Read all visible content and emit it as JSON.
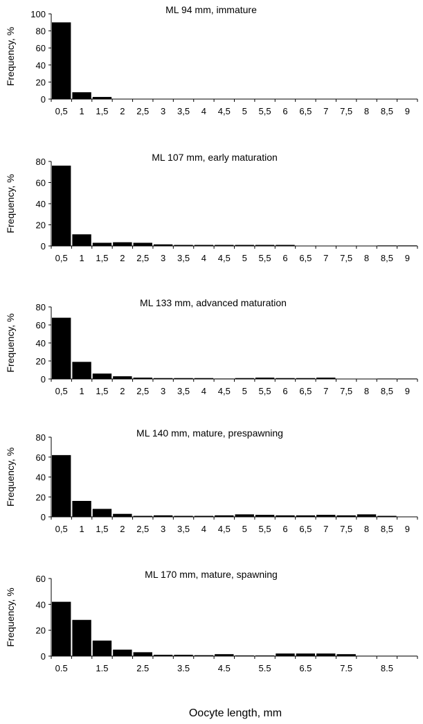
{
  "figure": {
    "xlabel": "Oocyte length, mm"
  },
  "chart_data": [
    {
      "type": "bar",
      "title": "ML 94 mm, immature",
      "ylabel": "Frequency, %",
      "ylim": [
        0,
        100
      ],
      "yticks": [
        "0",
        "20",
        "40",
        "60",
        "80",
        "100"
      ],
      "categories": [
        "0,5",
        "1",
        "1,5",
        "2",
        "2,5",
        "3",
        "3,5",
        "4",
        "4,5",
        "5",
        "5,5",
        "6",
        "6,5",
        "7",
        "7,5",
        "8",
        "8,5",
        "9"
      ],
      "values": [
        90,
        8,
        2.5,
        0.3,
        0,
        0,
        0,
        0,
        0.3,
        0,
        0,
        0,
        0.3,
        0,
        0,
        0,
        0,
        0
      ],
      "grid": false
    },
    {
      "type": "bar",
      "title": "ML 107 mm, early maturation",
      "ylabel": "Frequency, %",
      "ylim": [
        0,
        80
      ],
      "yticks": [
        "0",
        "20",
        "40",
        "60",
        "80"
      ],
      "categories": [
        "0,5",
        "1",
        "1,5",
        "2",
        "2,5",
        "3",
        "3,5",
        "4",
        "4,5",
        "5",
        "5,5",
        "6",
        "6,5",
        "7",
        "7,5",
        "8",
        "8,5",
        "9"
      ],
      "values": [
        76,
        11,
        3,
        3.5,
        3,
        1.5,
        1,
        1,
        1,
        1,
        1,
        1,
        0.3,
        0.3,
        0.3,
        0.3,
        0.5,
        0.5
      ],
      "grid": false
    },
    {
      "type": "bar",
      "title": "ML 133 mm, advanced maturation",
      "ylabel": "Frequency, %",
      "ylim": [
        0,
        80
      ],
      "yticks": [
        "0",
        "20",
        "40",
        "60",
        "80"
      ],
      "categories": [
        "0,5",
        "1",
        "1,5",
        "2",
        "2,5",
        "3",
        "3,5",
        "4",
        "4,5",
        "5",
        "5,5",
        "6",
        "6,5",
        "7",
        "7,5",
        "8",
        "8,5",
        "9"
      ],
      "values": [
        68,
        19,
        6,
        3,
        1.5,
        1,
        1,
        1,
        0.5,
        1,
        1.5,
        1,
        1,
        1.5,
        0.3,
        0.3,
        0.5,
        0.5
      ],
      "grid": false
    },
    {
      "type": "bar",
      "title": "ML 140 mm, mature, prespawning",
      "ylabel": "Frequency, %",
      "ylim": [
        0,
        80
      ],
      "yticks": [
        "0",
        "20",
        "40",
        "60",
        "80"
      ],
      "categories": [
        "0,5",
        "1",
        "1,5",
        "2",
        "2,5",
        "3",
        "3,5",
        "4",
        "4,5",
        "5",
        "5,5",
        "6",
        "6,5",
        "7",
        "7,5",
        "8",
        "8,5",
        "9"
      ],
      "values": [
        62,
        16,
        8,
        3,
        1,
        1.5,
        1,
        1,
        1.5,
        2.5,
        2,
        1.5,
        1.5,
        2,
        1.5,
        2.5,
        1,
        0.3
      ],
      "grid": false
    },
    {
      "type": "bar",
      "title": "ML 170 mm, mature, spawning",
      "ylabel": "Frequency, %",
      "ylim": [
        0,
        60
      ],
      "yticks": [
        "0",
        "20",
        "40",
        "60"
      ],
      "categories": [
        "0.5",
        "1",
        "1.5",
        "2",
        "2.5",
        "3",
        "3.5",
        "4",
        "4.5",
        "5",
        "5.5",
        "6",
        "6.5",
        "7",
        "7.5",
        "8",
        "8.5",
        "9"
      ],
      "xtick_labels": [
        "0.5",
        "1.5",
        "2.5",
        "3.5",
        "4.5",
        "5.5",
        "6.5",
        "7.5",
        "8.5"
      ],
      "values": [
        42,
        28,
        12,
        5,
        3,
        1,
        1,
        0.7,
        1.5,
        0.5,
        0.5,
        2,
        2,
        2,
        1.5,
        0.3,
        0.3,
        0.3
      ],
      "grid": false
    }
  ]
}
